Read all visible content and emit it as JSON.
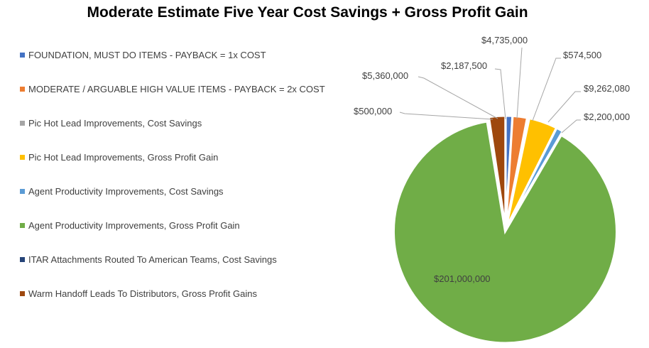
{
  "chart_data": {
    "type": "pie",
    "title": "Moderate Estimate Five Year Cost Savings + Gross Profit Gain",
    "legend_position": "left",
    "series": [
      {
        "name": "FOUNDATION, MUST DO ITEMS - PAYBACK = 1x COST",
        "value": 2187500,
        "label": "$2,187,500",
        "color": "#4472C4"
      },
      {
        "name": "MODERATE / ARGUABLE HIGH VALUE ITEMS - PAYBACK = 2x COST",
        "value": 4735000,
        "label": "$4,735,000",
        "color": "#ED7D31"
      },
      {
        "name": "Pic Hot Lead Improvements, Cost Savings",
        "value": 574500,
        "label": "$574,500",
        "color": "#A5A5A5"
      },
      {
        "name": "Pic Hot Lead Improvements, Gross Profit Gain",
        "value": 9262080,
        "label": "$9,262,080",
        "color": "#FFC000"
      },
      {
        "name": "Agent Productivity Improvements, Cost Savings",
        "value": 2200000,
        "label": "$2,200,000",
        "color": "#5B9BD5"
      },
      {
        "name": "Agent Productivity Improvements, Gross Profit Gain",
        "value": 201000000,
        "label": "$201,000,000",
        "color": "#70AD47"
      },
      {
        "name": "ITAR Attachments Routed To American Teams, Cost Savings",
        "value": 500000,
        "label": "$500,000",
        "color": "#264478"
      },
      {
        "name": "Warm Handoff Leads To Distributors, Gross Profit Gains",
        "value": 5360000,
        "label": "$5,360,000",
        "color": "#9E480E"
      }
    ]
  }
}
